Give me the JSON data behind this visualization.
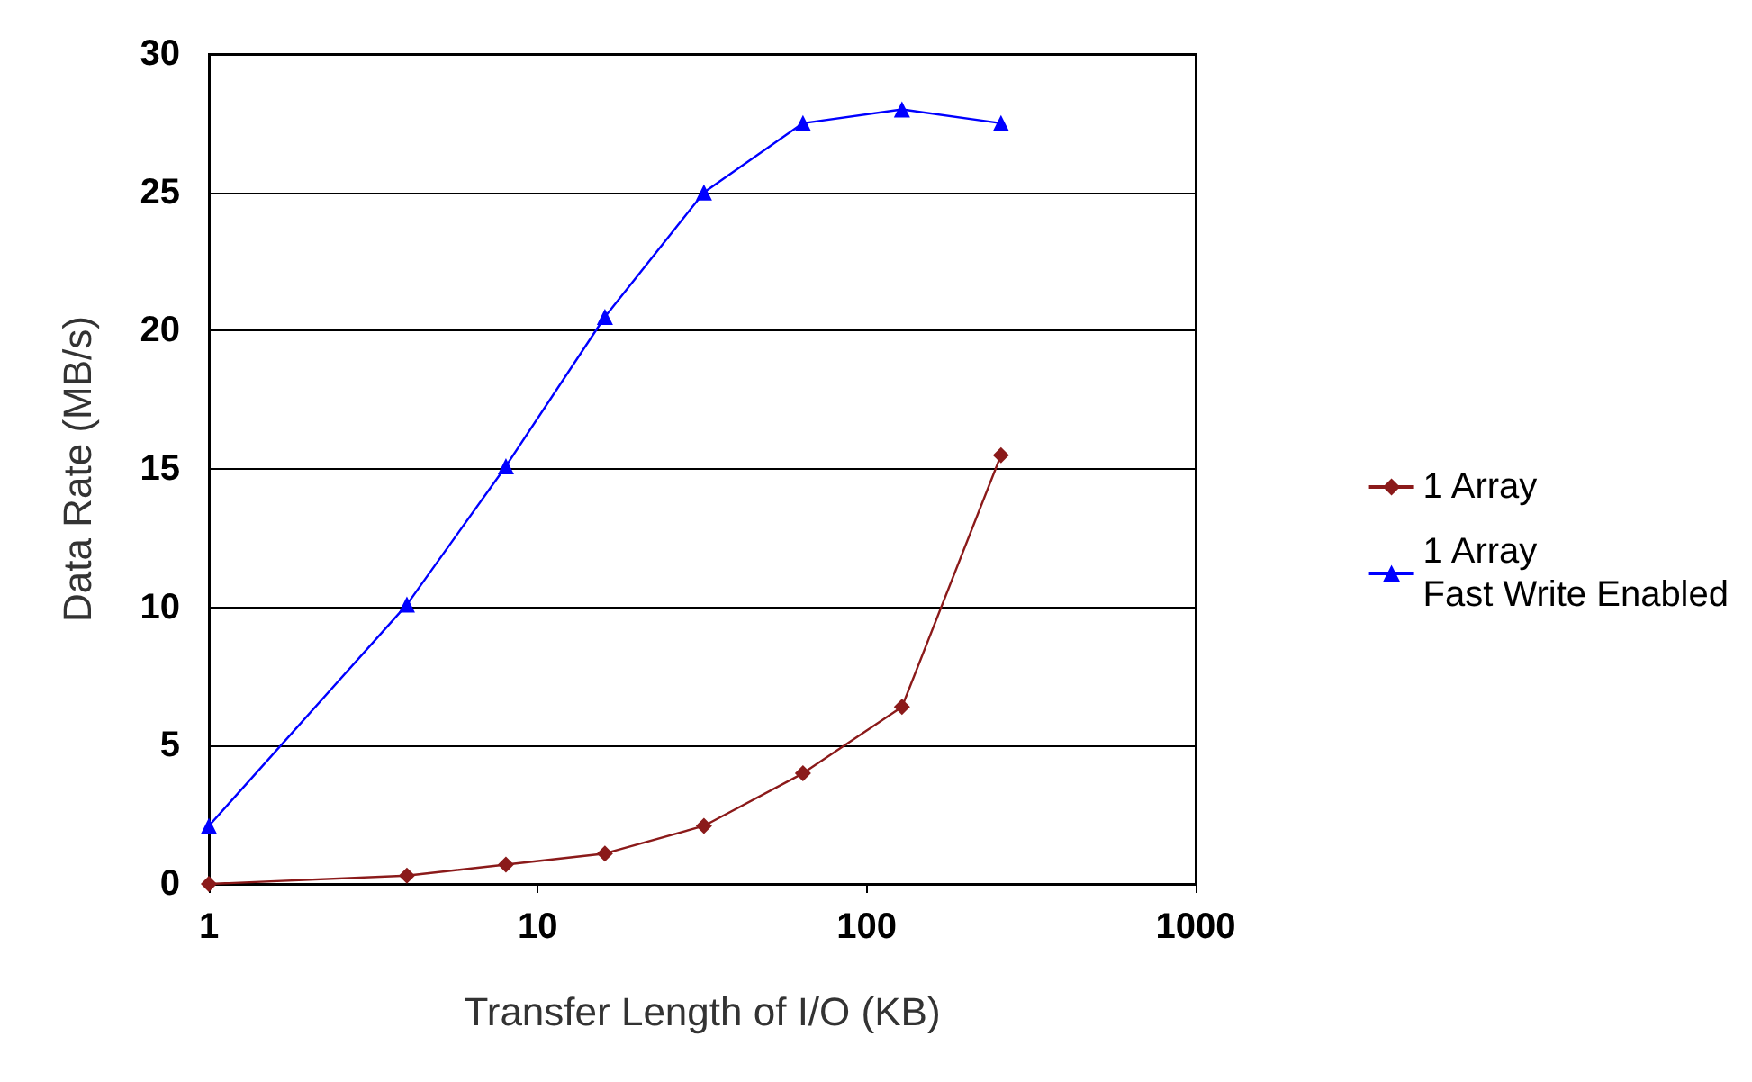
{
  "chart_data": {
    "type": "line",
    "xlabel": "Transfer Length of I/O (KB)",
    "ylabel": "Data Rate (MB/s)",
    "log": "x",
    "xlim": [
      1,
      1000
    ],
    "xticks": [
      1,
      10,
      100,
      1000
    ],
    "ylim": [
      0,
      30
    ],
    "yticks": [
      0,
      5,
      10,
      15,
      20,
      25,
      30
    ],
    "grid": "y",
    "legend": "right",
    "x": [
      1,
      4,
      8,
      16,
      32,
      64,
      128,
      256
    ],
    "series": [
      {
        "name": "1 Array",
        "color": "#8b1a1a",
        "marker": "diamond",
        "values": [
          0,
          0.3,
          0.7,
          1.1,
          2.1,
          4.0,
          6.4,
          15.5
        ]
      },
      {
        "name": "1 Array\nFast Write Enabled",
        "color": "#0000ff",
        "marker": "triangle",
        "values": [
          2.1,
          10.1,
          15.1,
          20.5,
          25.0,
          27.5,
          28.0,
          27.5
        ]
      }
    ]
  }
}
